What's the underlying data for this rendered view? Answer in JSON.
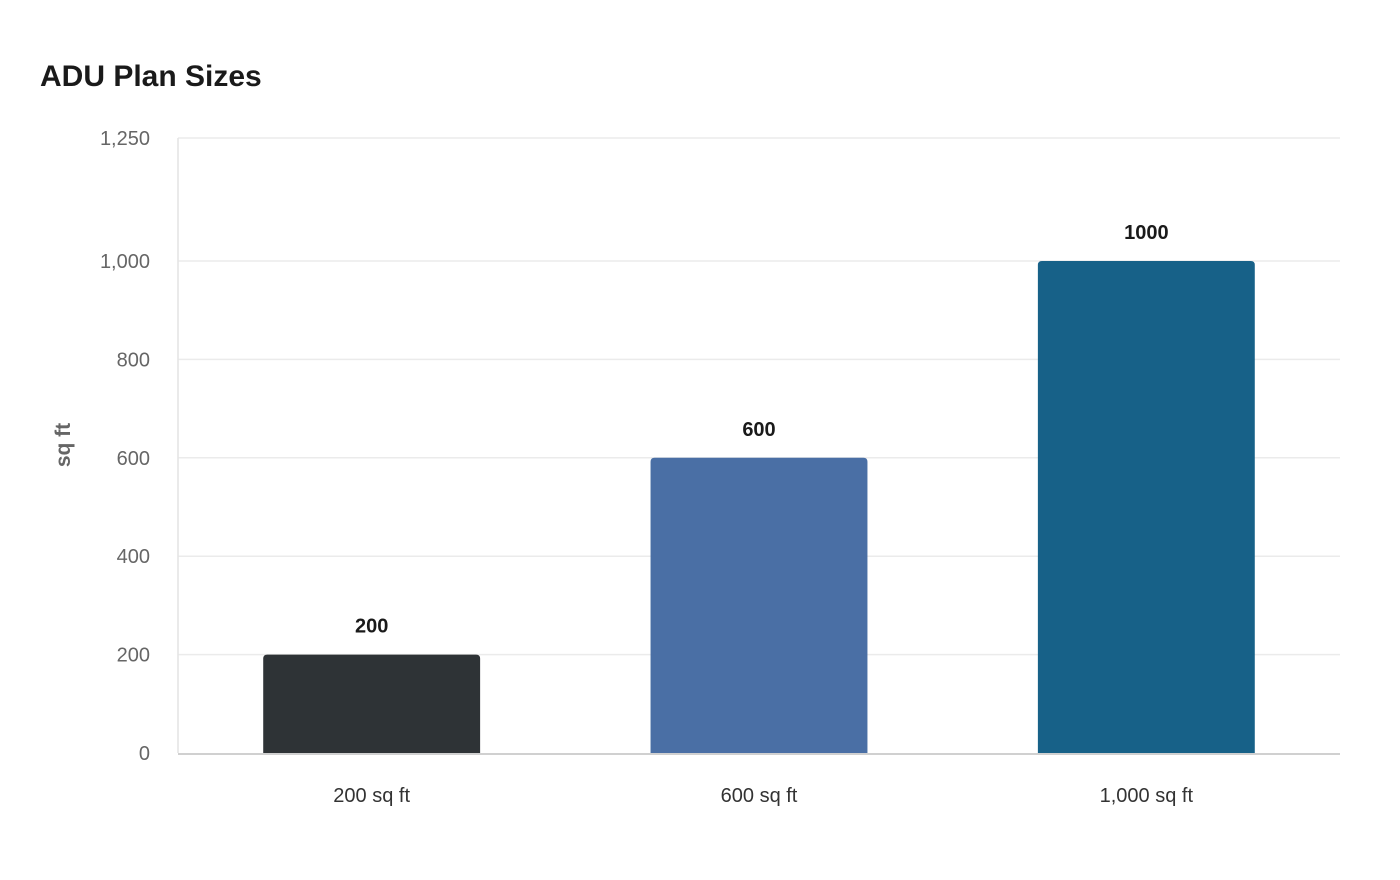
{
  "chart_data": {
    "type": "bar",
    "title": "ADU Plan Sizes",
    "xlabel": "",
    "ylabel": "sq ft",
    "categories": [
      "200 sq ft",
      "600 sq ft",
      "1,000 sq ft"
    ],
    "values": [
      200,
      600,
      1000
    ],
    "data_labels": [
      "200",
      "600",
      "1000"
    ],
    "colors": [
      "#2e3336",
      "#4a6fa5",
      "#176188"
    ],
    "ylim": [
      0,
      1250
    ],
    "yticks": [
      0,
      200,
      400,
      600,
      800,
      1000,
      1250
    ],
    "ytick_labels": [
      "0",
      "200",
      "400",
      "600",
      "800",
      "1,000",
      "1,250"
    ],
    "grid": true,
    "legend": "none"
  }
}
